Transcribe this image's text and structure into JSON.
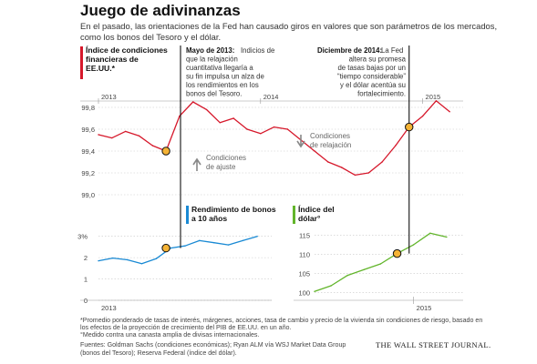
{
  "title": "Juego de adivinanzas",
  "subtitle": "En el pasado, las orientaciones de la Fed han causado giros en valores que son parámetros de los mercados, como los bonos del Tesoro y el dólar.",
  "colors": {
    "fci": "#d6182b",
    "bond": "#1a8ad4",
    "dollar": "#62b52b",
    "marker": "#f5b335",
    "grid": "#c8c8c8",
    "axis_text": "#444444"
  },
  "chart_data": [
    {
      "type": "line",
      "id": "fci",
      "title": "Índice de condiciones financieras de EE.UU.*",
      "x_labels": [
        "2013",
        "2014",
        "2015"
      ],
      "x": [
        "2013-01",
        "2013-02",
        "2013-03",
        "2013-04",
        "2013-05",
        "2013-06",
        "2013-07",
        "2013-08",
        "2013-09",
        "2013-10",
        "2013-11",
        "2013-12",
        "2014-01",
        "2014-02",
        "2014-03",
        "2014-04",
        "2014-05",
        "2014-06",
        "2014-07",
        "2014-08",
        "2014-09",
        "2014-10",
        "2014-11",
        "2014-12",
        "2015-01",
        "2015-02",
        "2015-03"
      ],
      "series": [
        {
          "values": [
            99.55,
            99.52,
            99.58,
            99.54,
            99.45,
            99.4,
            99.72,
            99.85,
            99.78,
            99.66,
            99.7,
            99.6,
            99.56,
            99.62,
            99.6,
            99.5,
            99.4,
            99.3,
            99.25,
            99.18,
            99.2,
            99.3,
            99.45,
            99.62,
            99.72,
            99.86,
            99.76
          ]
        }
      ],
      "yticks": [
        "99,8",
        "99,6",
        "99,4",
        "99,2",
        "99,0"
      ],
      "ylim": [
        98.95,
        99.95
      ],
      "annotations": {
        "mayo_head": "Mayo de 2013:",
        "mayo_lines": [
          "Indicios de",
          "que la relajación",
          "cuantitativa llegaría a",
          "su fin impulsa un alza de",
          "los rendimientos en los",
          "bonos del Tesoro."
        ],
        "dic_head": "Diciembre de 2014:",
        "dic_lines": [
          "La Fed",
          "altera su promesa",
          "de tasas bajas por un",
          "“tiempo considerable”",
          "y el dólar acentúa su",
          "fortalecimiento."
        ],
        "relax_label": [
          "Condiciones",
          "de relajación"
        ],
        "tight_label": [
          "Condiciones",
          "de ajuste"
        ]
      },
      "grid": true
    },
    {
      "type": "line",
      "id": "bond",
      "title": "Rendimiento de bonos a 10 años",
      "x_labels": [
        "2013"
      ],
      "x": [
        "2013-01",
        "2013-02",
        "2013-03",
        "2013-04",
        "2013-05",
        "2013-06",
        "2013-07",
        "2013-08",
        "2013-09",
        "2013-10",
        "2013-11",
        "2013-12"
      ],
      "series": [
        {
          "values": [
            1.85,
            1.98,
            1.9,
            1.72,
            1.95,
            2.45,
            2.55,
            2.8,
            2.7,
            2.6,
            2.8,
            3.0
          ]
        }
      ],
      "yticks": [
        "3%",
        "2",
        "1",
        "0"
      ],
      "ylim": [
        0,
        3.2
      ],
      "grid": true
    },
    {
      "type": "line",
      "id": "dollar",
      "title": "Índice del dólar°",
      "x_labels": [
        "2015"
      ],
      "x": [
        "2014-07",
        "2014-08",
        "2014-09",
        "2014-10",
        "2014-11",
        "2014-12",
        "2015-01",
        "2015-02",
        "2015-03"
      ],
      "series": [
        {
          "values": [
            100.3,
            101.8,
            104.5,
            106.0,
            107.5,
            110.2,
            112.5,
            115.5,
            114.5
          ]
        }
      ],
      "yticks": [
        "115",
        "110",
        "105",
        "100"
      ],
      "ylim": [
        98,
        117
      ],
      "grid": true
    }
  ],
  "footnotes": [
    "*Promedio ponderado de tasas de interés, márgenes, acciones, tasa de cambio y precio de la vivienda sin condiciones de riesgo, basado en",
    "los efectos de la proyección de crecimiento del PIB de EE.UU. en un año.",
    "°Medido contra una canasta amplia de divisas internacionales.",
    "Fuentes: Goldman Sachs (condiciones económicas); Ryan ALM vía WSJ Market Data Group",
    "(bonos del Tesoro); Reserva Federal (índice del dólar)."
  ],
  "brand": "THE WALL STREET JOURNAL."
}
